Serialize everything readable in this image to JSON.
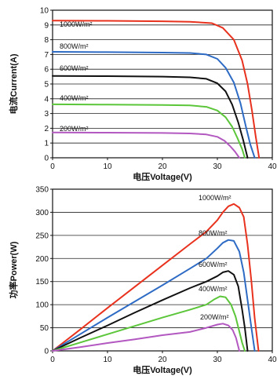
{
  "chart_data": [
    {
      "type": "line",
      "xlabel": "电压Voltage(V)",
      "ylabel": "电流Current(A)",
      "xlim": [
        0,
        40
      ],
      "ylim": [
        0,
        10
      ],
      "xticks": [
        0,
        10,
        20,
        30,
        40
      ],
      "yticks": [
        0,
        1,
        2,
        3,
        4,
        5,
        6,
        7,
        8,
        9,
        10
      ],
      "grid": "horizontal",
      "series": [
        {
          "name": "1000W/m²",
          "color": "#e8321e",
          "points": [
            [
              0,
              9.3
            ],
            [
              10,
              9.28
            ],
            [
              20,
              9.25
            ],
            [
              25,
              9.22
            ],
            [
              29,
              9.12
            ],
            [
              31,
              8.8
            ],
            [
              33,
              8.0
            ],
            [
              34.5,
              6.6
            ],
            [
              35.5,
              5.0
            ],
            [
              36.3,
              3.2
            ],
            [
              37,
              1.4
            ],
            [
              37.6,
              0
            ]
          ]
        },
        {
          "name": "800W/m²",
          "color": "#2e6bc4",
          "points": [
            [
              0,
              7.18
            ],
            [
              10,
              7.16
            ],
            [
              20,
              7.13
            ],
            [
              25,
              7.1
            ],
            [
              28,
              7.0
            ],
            [
              30,
              6.7
            ],
            [
              31.5,
              6.1
            ],
            [
              33,
              5.1
            ],
            [
              34.2,
              3.7
            ],
            [
              35.2,
              2.1
            ],
            [
              36,
              0.9
            ],
            [
              36.8,
              0
            ]
          ]
        },
        {
          "name": "600W/m²",
          "color": "#111111",
          "points": [
            [
              0,
              5.55
            ],
            [
              10,
              5.53
            ],
            [
              20,
              5.5
            ],
            [
              25,
              5.45
            ],
            [
              28,
              5.35
            ],
            [
              30,
              5.05
            ],
            [
              31.5,
              4.5
            ],
            [
              32.7,
              3.6
            ],
            [
              33.8,
              2.4
            ],
            [
              34.7,
              1.2
            ],
            [
              35.5,
              0
            ]
          ]
        },
        {
          "name": "400W/m²",
          "color": "#5cc63a",
          "points": [
            [
              0,
              3.62
            ],
            [
              10,
              3.6
            ],
            [
              20,
              3.58
            ],
            [
              25,
              3.55
            ],
            [
              28,
              3.45
            ],
            [
              30,
              3.2
            ],
            [
              31.5,
              2.75
            ],
            [
              32.7,
              2.1
            ],
            [
              33.7,
              1.3
            ],
            [
              34.5,
              0.6
            ],
            [
              35,
              0
            ]
          ]
        },
        {
          "name": "200W/m²",
          "color": "#b258c0",
          "points": [
            [
              0,
              1.72
            ],
            [
              10,
              1.7
            ],
            [
              20,
              1.68
            ],
            [
              25,
              1.65
            ],
            [
              28,
              1.58
            ],
            [
              30,
              1.42
            ],
            [
              31.3,
              1.15
            ],
            [
              32.3,
              0.8
            ],
            [
              33.2,
              0.42
            ],
            [
              34,
              0
            ]
          ]
        }
      ]
    },
    {
      "type": "line",
      "xlabel": "电压Voltage(V)",
      "ylabel": "功率Power(W)",
      "xlim": [
        0,
        40
      ],
      "ylim": [
        0,
        350
      ],
      "xticks": [
        0,
        10,
        20,
        30,
        40
      ],
      "yticks": [
        0,
        50,
        100,
        150,
        200,
        250,
        300,
        350
      ],
      "grid": "horizontal",
      "series": [
        {
          "name": "1000W/m²",
          "color": "#e8321e",
          "points": [
            [
              0,
              0
            ],
            [
              5,
              46
            ],
            [
              10,
              93
            ],
            [
              15,
              139
            ],
            [
              20,
              185
            ],
            [
              25,
              231
            ],
            [
              28,
              258
            ],
            [
              30,
              283
            ],
            [
              31,
              300
            ],
            [
              32,
              313
            ],
            [
              33,
              318
            ],
            [
              34,
              310
            ],
            [
              34.8,
              290
            ],
            [
              35.5,
              230
            ],
            [
              36.2,
              150
            ],
            [
              36.8,
              70
            ],
            [
              37.5,
              0
            ]
          ]
        },
        {
          "name": "800W/m²",
          "color": "#2e6bc4",
          "points": [
            [
              0,
              0
            ],
            [
              5,
              36
            ],
            [
              10,
              72
            ],
            [
              15,
              107
            ],
            [
              20,
              142
            ],
            [
              25,
              178
            ],
            [
              28,
              200
            ],
            [
              30,
              222
            ],
            [
              31,
              234
            ],
            [
              32,
              240
            ],
            [
              33,
              238
            ],
            [
              34,
              215
            ],
            [
              34.8,
              170
            ],
            [
              35.5,
              110
            ],
            [
              36.2,
              50
            ],
            [
              36.8,
              0
            ]
          ]
        },
        {
          "name": "600W/m²",
          "color": "#111111",
          "points": [
            [
              0,
              0
            ],
            [
              5,
              28
            ],
            [
              10,
              55
            ],
            [
              15,
              83
            ],
            [
              20,
              110
            ],
            [
              25,
              136
            ],
            [
              28,
              150
            ],
            [
              30,
              162
            ],
            [
              31,
              170
            ],
            [
              32,
              173
            ],
            [
              33,
              165
            ],
            [
              33.8,
              140
            ],
            [
              34.5,
              90
            ],
            [
              35,
              50
            ],
            [
              35.5,
              0
            ]
          ]
        },
        {
          "name": "400W/m²",
          "color": "#5cc63a",
          "points": [
            [
              0,
              0
            ],
            [
              5,
              18
            ],
            [
              10,
              36
            ],
            [
              15,
              54
            ],
            [
              20,
              72
            ],
            [
              25,
              89
            ],
            [
              28,
              100
            ],
            [
              29.5,
              112
            ],
            [
              30.5,
              118
            ],
            [
              31.5,
              116
            ],
            [
              32.5,
              100
            ],
            [
              33.3,
              75
            ],
            [
              34,
              42
            ],
            [
              34.5,
              18
            ],
            [
              35,
              0
            ]
          ]
        },
        {
          "name": "200W/m²",
          "color": "#b258c0",
          "points": [
            [
              0,
              0
            ],
            [
              5,
              8
            ],
            [
              10,
              17
            ],
            [
              15,
              25
            ],
            [
              20,
              34
            ],
            [
              25,
              41
            ],
            [
              28,
              50
            ],
            [
              30,
              57
            ],
            [
              31,
              59
            ],
            [
              32,
              55
            ],
            [
              32.8,
              45
            ],
            [
              33.4,
              28
            ],
            [
              34,
              0
            ]
          ]
        }
      ]
    }
  ]
}
